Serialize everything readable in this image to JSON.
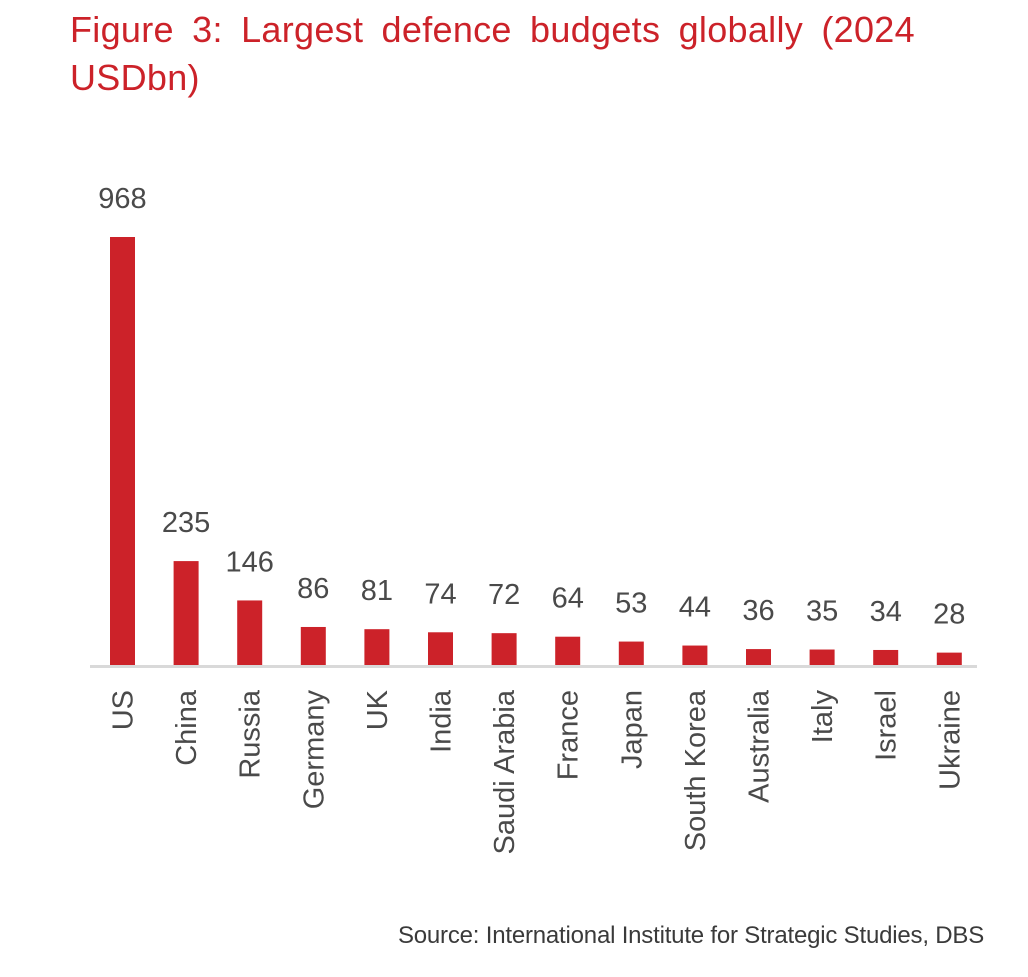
{
  "figure": {
    "title": "Figure 3: Largest defence budgets globally (2024 USDbn)",
    "source": "Source: International Institute for Strategic Studies, DBS"
  },
  "colors": {
    "bar": "#cc2229",
    "title": "#cc2229",
    "axis": "#d9d9d9",
    "text": "#4a4a4a"
  },
  "chart_data": {
    "type": "bar",
    "title": "Figure 3: Largest defence budgets globally (2024 USDbn)",
    "xlabel": "",
    "ylabel": "",
    "categories": [
      "US",
      "China",
      "Russia",
      "Germany",
      "UK",
      "India",
      "Saudi Arabia",
      "France",
      "Japan",
      "South Korea",
      "Australia",
      "Italy",
      "Israel",
      "Ukraine"
    ],
    "values": [
      968,
      235,
      146,
      86,
      81,
      74,
      72,
      64,
      53,
      44,
      36,
      35,
      34,
      28
    ],
    "units": "USD bn",
    "ylim": [
      0,
      968
    ],
    "grid": false,
    "legend": "none",
    "data_labels": true,
    "x_tick_rotation": "vertical",
    "source": "Source: International Institute for Strategic Studies, DBS"
  }
}
